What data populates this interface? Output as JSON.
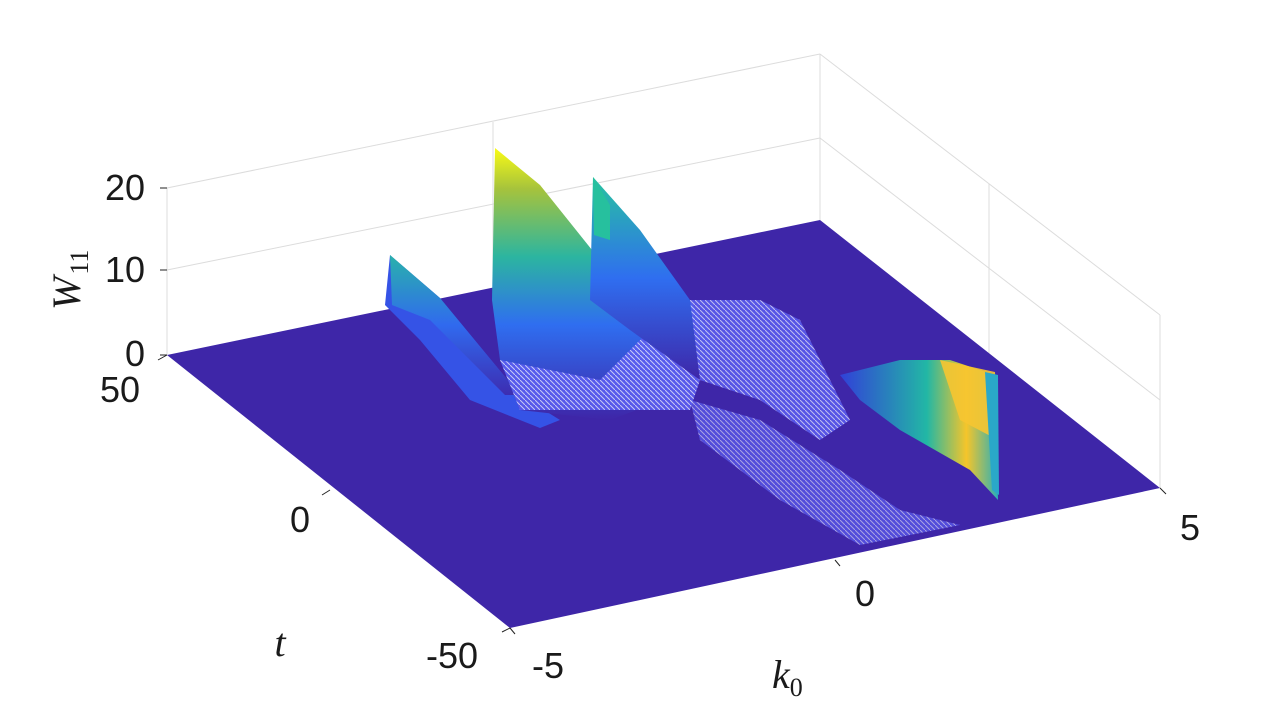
{
  "chart_data": {
    "type": "surface",
    "title": "",
    "xlabel": {
      "main": "k",
      "sub": "0"
    },
    "ylabel": {
      "main": "t",
      "sub": ""
    },
    "zlabel": {
      "main": "W",
      "sub": "11"
    },
    "x_ticks": [
      -5,
      0,
      5
    ],
    "y_ticks": [
      -50,
      0,
      50
    ],
    "z_ticks": [
      0,
      10,
      20
    ],
    "xlim": [
      -5,
      5
    ],
    "ylim": [
      -50,
      50
    ],
    "zlim": [
      0,
      20
    ],
    "x_tick_labels": [
      "-5",
      "0",
      "5"
    ],
    "y_tick_labels": [
      "-50",
      "0",
      "50"
    ],
    "z_tick_labels": [
      "0",
      "10",
      "20"
    ],
    "colormap": "parula",
    "colors": {
      "low": "#3e26a8",
      "mid": "#2cb5a0",
      "high": "#f9fb15"
    },
    "peaks": [
      {
        "t": 50,
        "k0_range": [
          -4.2,
          -3.2
        ],
        "height": 11
      },
      {
        "t": 50,
        "k0_range": [
          -2.8,
          -1.6
        ],
        "height": 21
      },
      {
        "t": 50,
        "k0_range": [
          -1.0,
          0.0
        ],
        "height": 18
      },
      {
        "t": -10,
        "k0_range": [
          1.2,
          3.0
        ],
        "height": 9
      }
    ]
  }
}
